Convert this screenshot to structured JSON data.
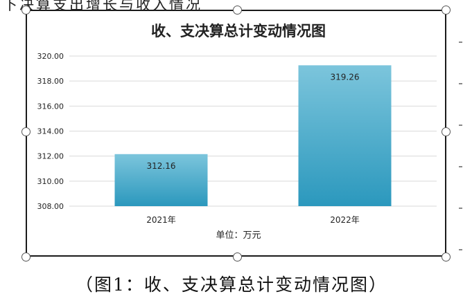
{
  "page": {
    "top_text": "下决算支出增长与收入情况",
    "caption": "（图1：收、支决算总计变动情况图）"
  },
  "chart_data": {
    "type": "bar",
    "title": "收、支决算总计变动情况图",
    "categories": [
      "2021年",
      "2022年"
    ],
    "values": [
      312.16,
      319.26
    ],
    "value_labels": [
      "312.16",
      "319.26"
    ],
    "yticks": [
      "308.00",
      "310.00",
      "312.00",
      "314.00",
      "316.00",
      "318.00",
      "320.00"
    ],
    "ylim": [
      308,
      320
    ],
    "xlabel": "单位：万元",
    "ylabel": "",
    "grid": true,
    "legend": "none",
    "colors": {
      "bar_top": "#74c0d8",
      "bar_bottom": "#2e9bbf",
      "grid": "#d9d9d9",
      "text": "#222222"
    }
  }
}
